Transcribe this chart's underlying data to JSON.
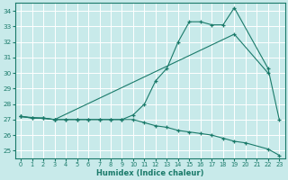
{
  "xlabel": "Humidex (Indice chaleur)",
  "bg_color": "#c8eaea",
  "grid_color": "#ffffff",
  "line_color": "#1a7a6a",
  "xlim": [
    -0.5,
    23.5
  ],
  "ylim": [
    24.5,
    34.5
  ],
  "xticks": [
    0,
    1,
    2,
    3,
    4,
    5,
    6,
    7,
    8,
    9,
    10,
    11,
    12,
    13,
    14,
    15,
    16,
    17,
    18,
    19,
    20,
    21,
    22,
    23
  ],
  "yticks": [
    25,
    26,
    27,
    28,
    29,
    30,
    31,
    32,
    33,
    34
  ],
  "curve1_x": [
    0,
    1,
    2,
    3,
    4,
    5,
    6,
    7,
    8,
    9,
    10,
    11,
    12,
    13,
    14,
    15,
    16,
    17,
    18,
    19,
    22,
    23
  ],
  "curve1_y": [
    27.2,
    27.1,
    27.1,
    27.0,
    27.0,
    27.0,
    27.0,
    27.0,
    27.0,
    27.0,
    27.3,
    28.0,
    29.5,
    30.3,
    32.0,
    33.3,
    33.3,
    33.1,
    33.1,
    34.2,
    30.3,
    27.0
  ],
  "curve2_x": [
    0,
    3,
    19,
    22
  ],
  "curve2_y": [
    27.2,
    27.0,
    32.5,
    30.0
  ],
  "curve3_x": [
    0,
    1,
    2,
    3,
    4,
    5,
    6,
    7,
    8,
    9,
    10,
    11,
    12,
    13,
    14,
    15,
    16,
    17,
    18,
    19,
    20,
    22,
    23
  ],
  "curve3_y": [
    27.2,
    27.1,
    27.1,
    27.0,
    27.0,
    27.0,
    27.0,
    27.0,
    27.0,
    27.0,
    27.0,
    26.8,
    26.6,
    26.5,
    26.3,
    26.2,
    26.1,
    26.0,
    25.8,
    25.6,
    25.5,
    25.1,
    24.7
  ]
}
